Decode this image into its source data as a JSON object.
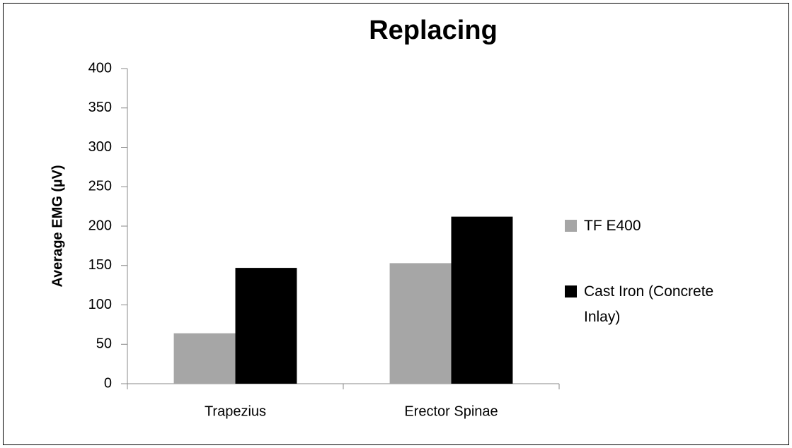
{
  "chart_data": {
    "type": "bar",
    "title": "Replacing",
    "y_label": "Average EMG (µV)",
    "categories": [
      "Trapezius",
      "Erector Spinae"
    ],
    "series": [
      {
        "name": "TF E400",
        "color": "#a6a6a6",
        "values": [
          64,
          153
        ]
      },
      {
        "name": "Cast Iron (Concrete Inlay)",
        "color": "#000000",
        "values": [
          147,
          212
        ]
      }
    ],
    "ylim": [
      0,
      400
    ],
    "yticks": [
      0,
      50,
      100,
      150,
      200,
      250,
      300,
      350,
      400
    ],
    "grid": false,
    "legend": "right"
  }
}
